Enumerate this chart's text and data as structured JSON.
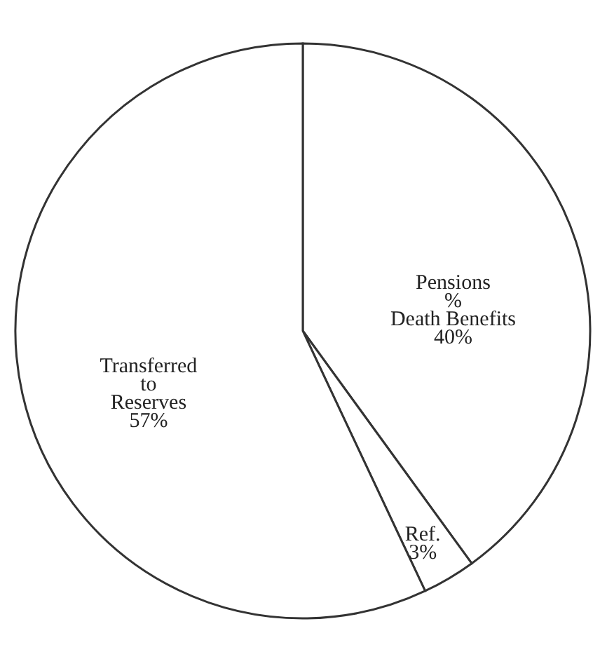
{
  "chart_data": {
    "type": "pie",
    "categories": [
      "Pensions\n%\nDeath Benefits",
      "Ref.",
      "Transferred\n\nto\n\nReserves"
    ],
    "values": [
      40,
      3,
      57
    ],
    "value_labels": [
      "40%",
      "3%",
      "57%"
    ],
    "colors": [
      "#ffffff",
      "#ffffff",
      "#ffffff"
    ]
  }
}
